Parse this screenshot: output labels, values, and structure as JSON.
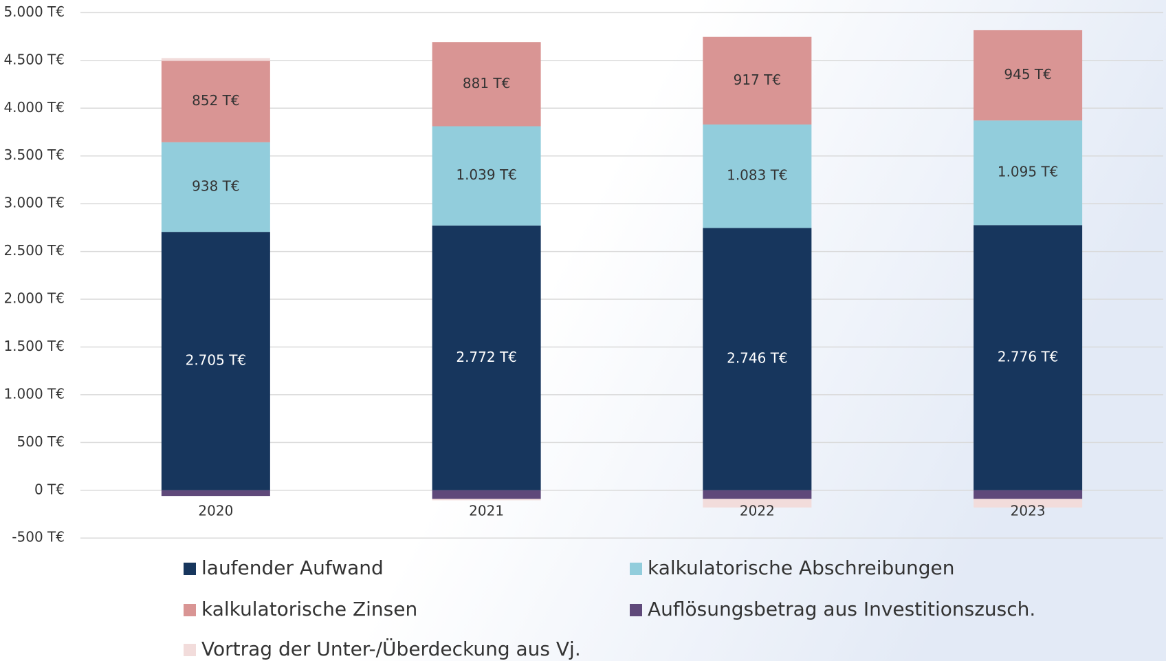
{
  "chart_data": {
    "type": "stacked_bar",
    "categories": [
      "2020",
      "2021",
      "2022",
      "2023"
    ],
    "series": [
      {
        "name": "laufender Aufwand",
        "color": "#17365d",
        "values": [
          2705,
          2772,
          2746,
          2776
        ],
        "value_labels": [
          "2.705 T€",
          "2.772 T€",
          "2.746 T€",
          "2.776 T€"
        ]
      },
      {
        "name": "kalkulatorische Abschreibungen",
        "color": "#92cddc",
        "values": [
          938,
          1039,
          1083,
          1095
        ],
        "value_labels": [
          "938 T€",
          "1.039 T€",
          "1.083 T€",
          "1.095 T€"
        ]
      },
      {
        "name": "kalkulatorische Zinsen",
        "color": "#d99594",
        "values": [
          852,
          881,
          917,
          945
        ],
        "value_labels": [
          "852 T€",
          "881 T€",
          "917 T€",
          "945 T€"
        ]
      },
      {
        "name": "Auflösungsbetrag aus Investitionszusch.",
        "color": "#5f497a",
        "values": [
          -60,
          -90,
          -90,
          -90
        ]
      },
      {
        "name": "Vortrag der Unter-/Überdeckung aus Vj.",
        "color": "#f2dcdb",
        "values": [
          30,
          -15,
          -90,
          -90
        ]
      }
    ],
    "ylim": [
      -500,
      5000
    ],
    "yticks": [
      {
        "value": -500,
        "label": "-500 T€"
      },
      {
        "value": 0,
        "label": "0 T€"
      },
      {
        "value": 500,
        "label": "500 T€"
      },
      {
        "value": 1000,
        "label": "1.000 T€"
      },
      {
        "value": 1500,
        "label": "1.500 T€"
      },
      {
        "value": 2000,
        "label": "2.000 T€"
      },
      {
        "value": 2500,
        "label": "2.500 T€"
      },
      {
        "value": 3000,
        "label": "3.000 T€"
      },
      {
        "value": 3500,
        "label": "3.500 T€"
      },
      {
        "value": 4000,
        "label": "4.000 T€"
      },
      {
        "value": 4500,
        "label": "4.500 T€"
      },
      {
        "value": 5000,
        "label": "5.000 T€"
      }
    ],
    "grid": true,
    "legend": "bottom"
  }
}
